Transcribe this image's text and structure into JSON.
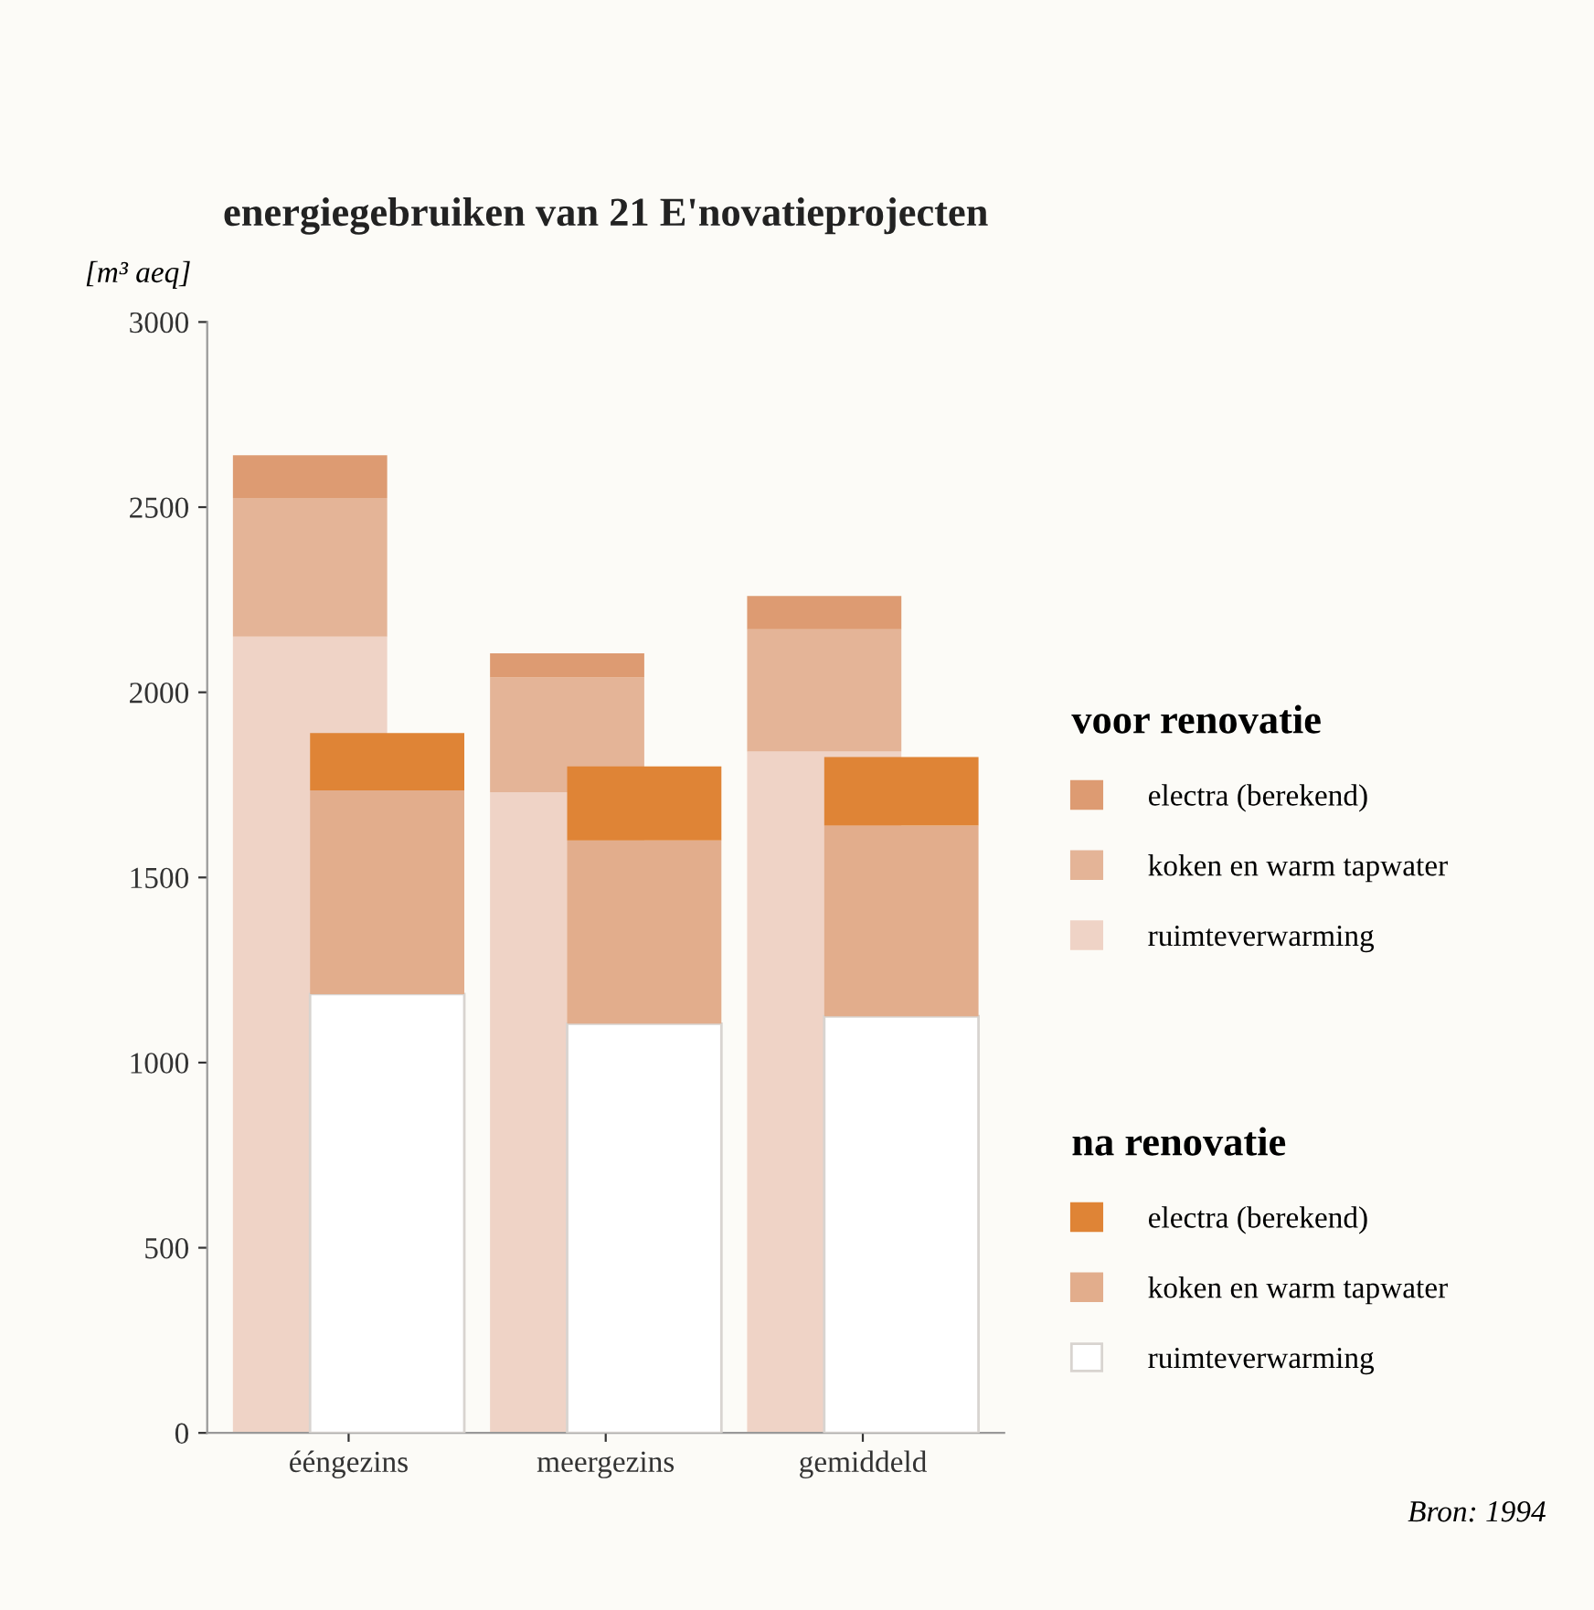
{
  "chart_data": [
    {
      "type": "bar",
      "stacked": true,
      "title": "energiegebruiken van 21 E'novatieprojecten",
      "ylabel": "[m³ aeq]",
      "legend_title": "voor renovatie",
      "categories": [
        "ééngezins",
        "meergezins",
        "gemiddeld"
      ],
      "series": [
        {
          "name": "ruimteverwarming",
          "color": "#efd3c6",
          "values": [
            2150,
            1730,
            1840
          ]
        },
        {
          "name": "koken en warm tapwater",
          "color": "#e4b497",
          "values": [
            375,
            310,
            330
          ]
        },
        {
          "name": "electra (berekend)",
          "color": "#dd9b72",
          "values": [
            115,
            65,
            90
          ]
        }
      ],
      "ylim": [
        0,
        3000
      ],
      "yticks": [
        0,
        500,
        1000,
        1500,
        2000,
        2500,
        3000
      ],
      "grid": false,
      "legend": "right",
      "annotations": [
        "Bron: 1994"
      ]
    },
    {
      "type": "bar",
      "stacked": true,
      "legend_title": "na renovatie",
      "categories": [
        null,
        null,
        null
      ],
      "series": [
        {
          "name": "ruimteverwarming",
          "color": "#ffffff",
          "values": [
            1185,
            1105,
            1125
          ]
        },
        {
          "name": "koken en warm tapwater",
          "color": "#e2ad8c",
          "values": [
            550,
            495,
            515
          ]
        },
        {
          "name": "electra (berekend)",
          "color": "#df8436",
          "values": [
            155,
            200,
            185
          ]
        }
      ],
      "ylim": [
        0,
        3000
      ],
      "grid": false,
      "legend": "right",
      "tick_labels": false
    }
  ]
}
